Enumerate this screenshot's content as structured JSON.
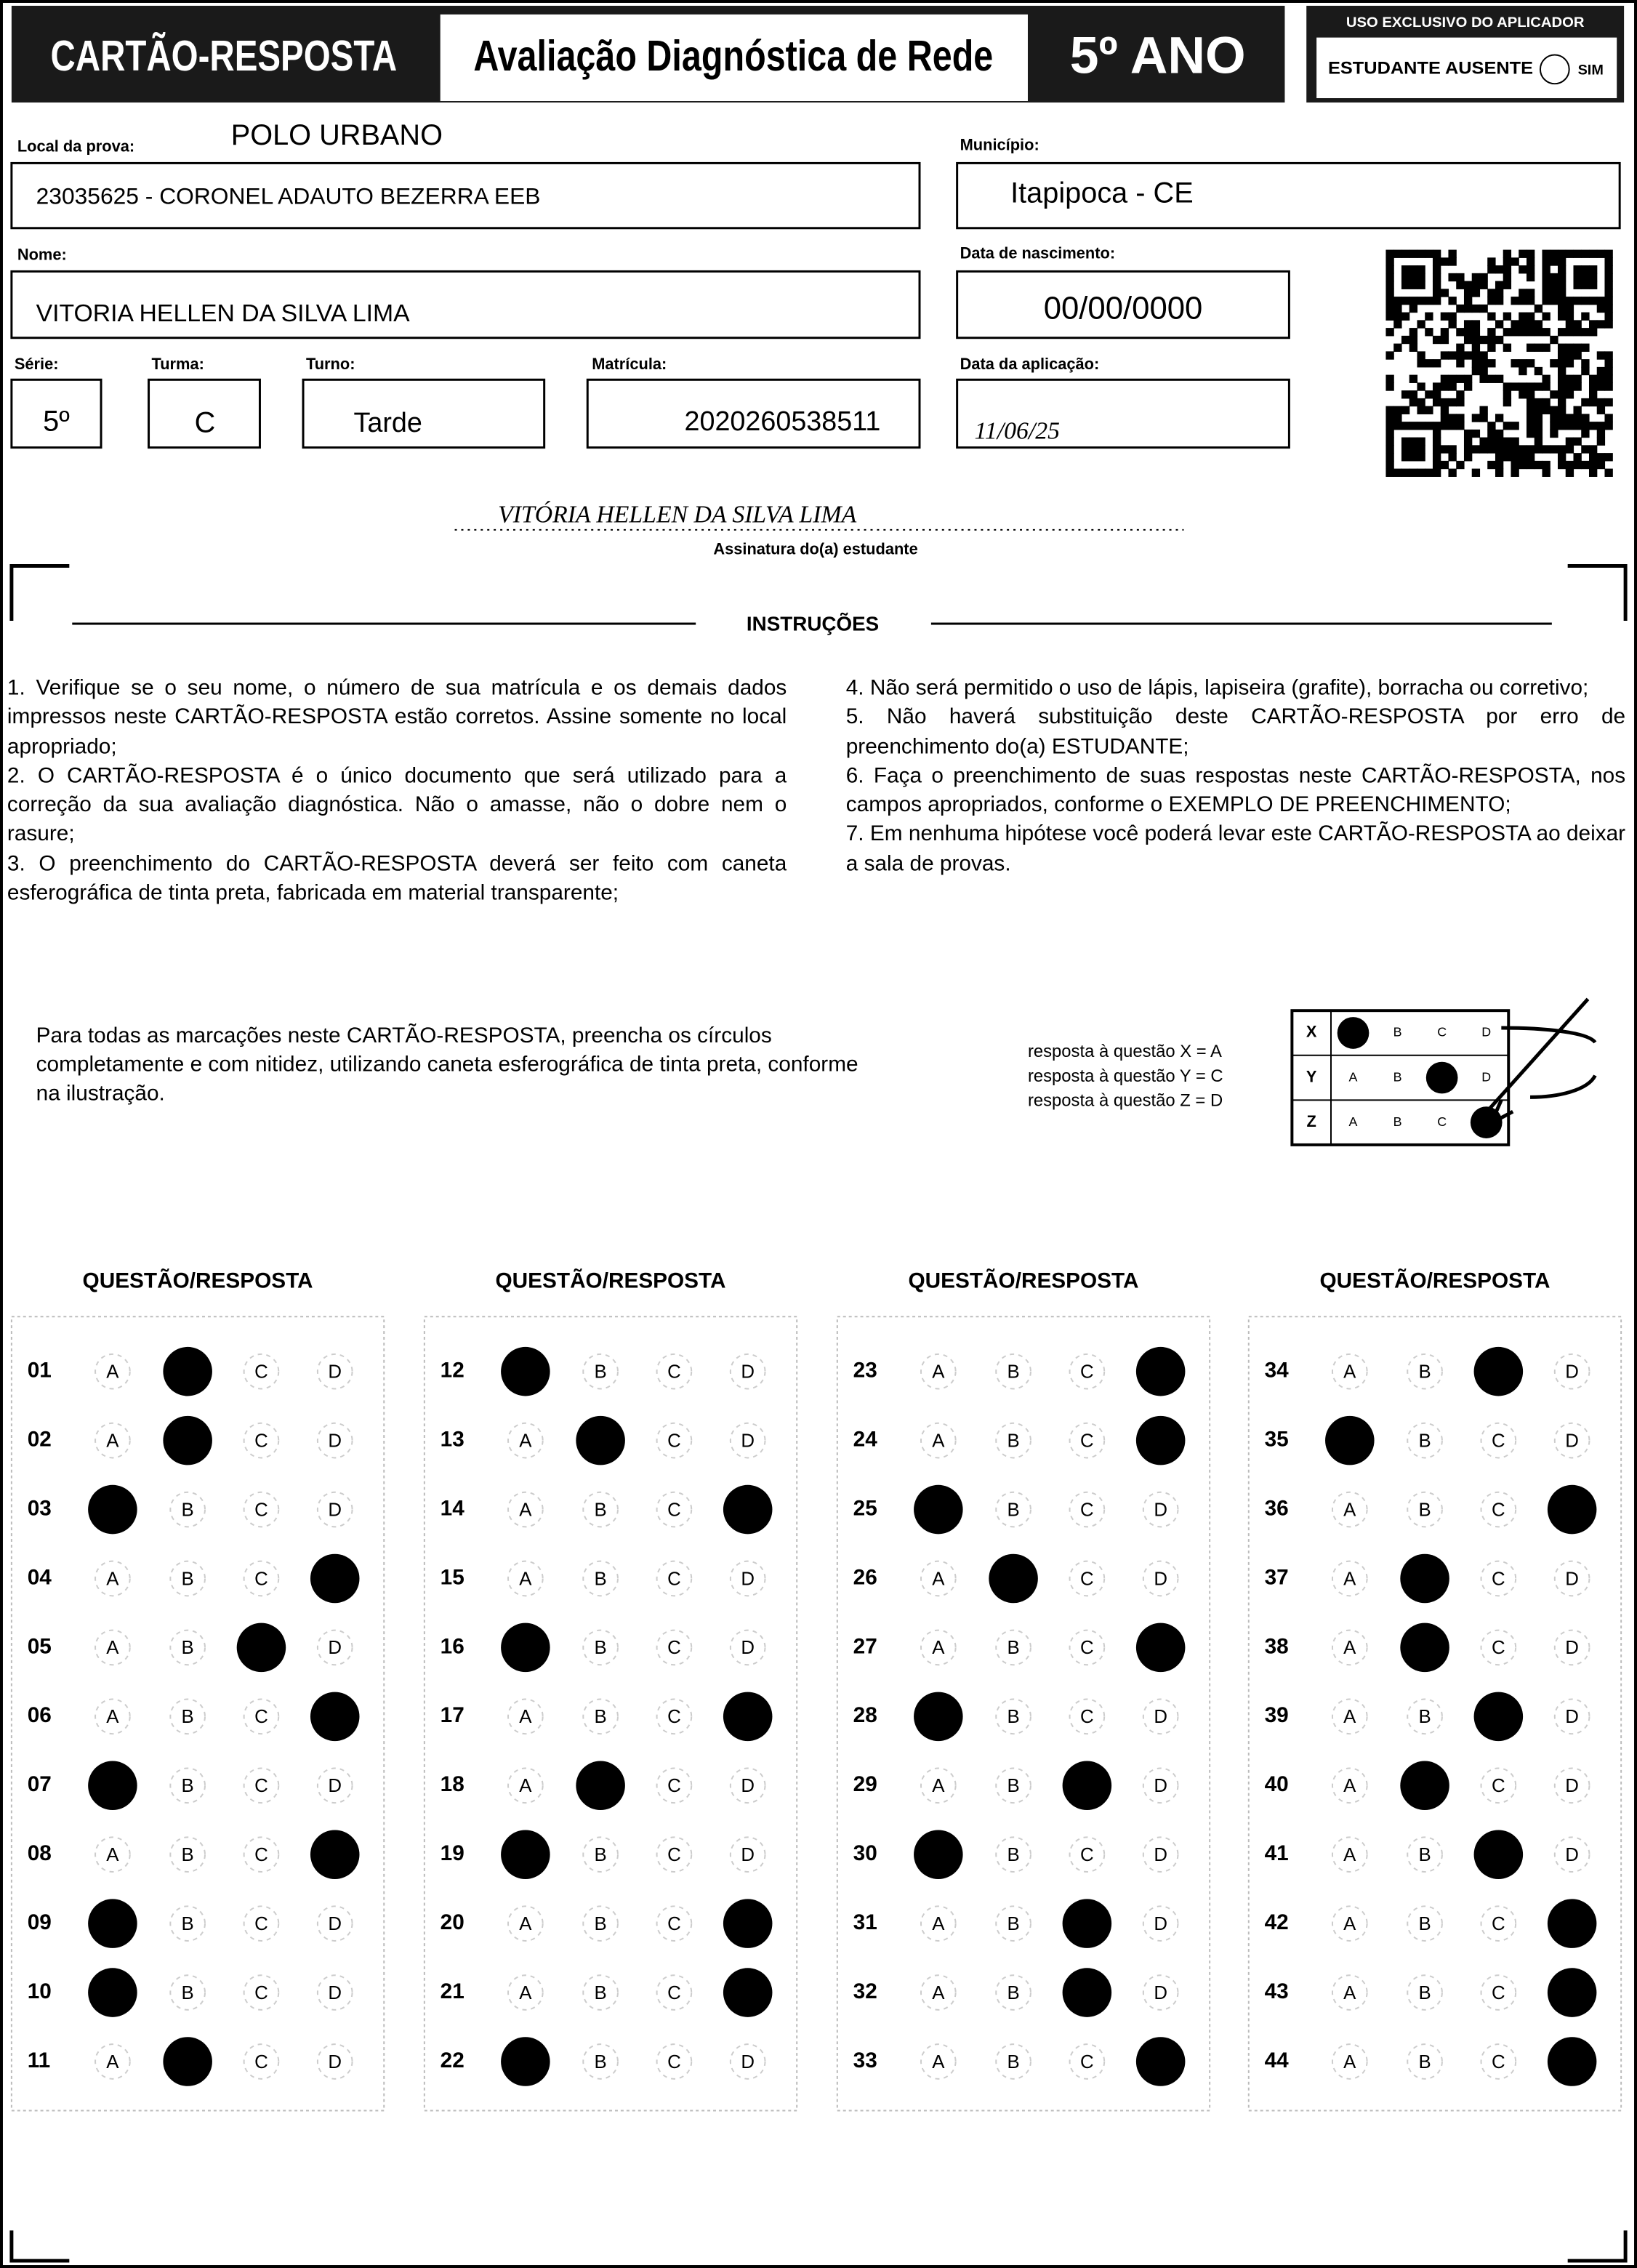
{
  "header": {
    "title": "CARTÃO-RESPOSTA",
    "exam": "Avaliação Diagnóstica de Rede",
    "grade": "5º ANO",
    "applicator": {
      "title": "USO EXCLUSIVO DO APLICADOR",
      "absent_label": "ESTUDANTE AUSENTE",
      "absent_option": "SIM"
    }
  },
  "fields": {
    "location": {
      "label": "Local da prova:",
      "polo": "POLO URBANO",
      "value": "23035625 - CORONEL ADAUTO BEZERRA EEB"
    },
    "municipality": {
      "label": "Município:",
      "value": "Itapipoca - CE"
    },
    "name": {
      "label": "Nome:",
      "value": "VITORIA HELLEN DA SILVA LIMA"
    },
    "birth_date": {
      "label": "Data de nascimento:",
      "value": "00/00/0000"
    },
    "series": {
      "label": "Série:",
      "value": "5º"
    },
    "class": {
      "label": "Turma:",
      "value": "C"
    },
    "shift": {
      "label": "Turno:",
      "value": "Tarde"
    },
    "registration": {
      "label": "Matrícula:",
      "value": "2020260538511"
    },
    "application_date": {
      "label": "Data da aplicação:",
      "value": "11/06/25"
    }
  },
  "signature": {
    "value": "VITÓRIA HELLEN DA SILVA LIMA",
    "label": "Assinatura do(a) estudante"
  },
  "instructions": {
    "title": "INSTRUÇÕES",
    "items": [
      "1. Verifique se o seu nome, o número de sua matrícula e os demais dados impressos neste CARTÃO-RESPOSTA estão corretos. Assine somente no local apropriado;",
      "2. O CARTÃO-RESPOSTA é o único documento que será utilizado para a correção da sua avaliação diagnóstica. Não o amasse, não o dobre nem o rasure;",
      "3. O preenchimento do CARTÃO-RESPOSTA deverá ser feito com caneta esferográfica de tinta preta, fabricada em material transparente;",
      "4. Não será permitido o uso de lápis, lapiseira (grafite), borracha ou corretivo;",
      "5. Não haverá substituição deste CARTÃO-RESPOSTA por erro de preenchimento do(a) ESTUDANTE;",
      "6. Faça o preenchimento de suas respostas neste CARTÃO-RESPOSTA, nos campos apropriados, conforme o EXEMPLO DE PREENCHIMENTO;",
      "7. Em nenhuma hipótese você poderá levar este CARTÃO-RESPOSTA ao deixar a sala de provas."
    ]
  },
  "example": {
    "text": "Para todas as marcações neste CARTÃO-RESPOSTA, preencha os círculos completamente e com nitidez, utilizando caneta esferográfica de tinta preta, conforme na ilustração.",
    "legend": [
      "resposta à questão X = A",
      "resposta à questão Y = C",
      "resposta à questão Z = D"
    ],
    "rows": [
      {
        "label": "X",
        "answer": "A"
      },
      {
        "label": "Y",
        "answer": "C"
      },
      {
        "label": "Z",
        "answer": "D"
      }
    ]
  },
  "answers": {
    "header": "QUESTÃO/RESPOSTA",
    "options": [
      "A",
      "B",
      "C",
      "D"
    ],
    "columns": [
      [
        {
          "number": "01",
          "answer": "B"
        },
        {
          "number": "02",
          "answer": "B"
        },
        {
          "number": "03",
          "answer": "A"
        },
        {
          "number": "04",
          "answer": "D"
        },
        {
          "number": "05",
          "answer": "C"
        },
        {
          "number": "06",
          "answer": "D"
        },
        {
          "number": "07",
          "answer": "A"
        },
        {
          "number": "08",
          "answer": "D"
        },
        {
          "number": "09",
          "answer": "A"
        },
        {
          "number": "10",
          "answer": "A"
        },
        {
          "number": "11",
          "answer": "B"
        }
      ],
      [
        {
          "number": "12",
          "answer": "A"
        },
        {
          "number": "13",
          "answer": "B"
        },
        {
          "number": "14",
          "answer": "D"
        },
        {
          "number": "15",
          "answer": null
        },
        {
          "number": "16",
          "answer": "A"
        },
        {
          "number": "17",
          "answer": "D"
        },
        {
          "number": "18",
          "answer": "B"
        },
        {
          "number": "19",
          "answer": "A"
        },
        {
          "number": "20",
          "answer": "D"
        },
        {
          "number": "21",
          "answer": "D"
        },
        {
          "number": "22",
          "answer": "A"
        }
      ],
      [
        {
          "number": "23",
          "answer": "D"
        },
        {
          "number": "24",
          "answer": "D"
        },
        {
          "number": "25",
          "answer": "A"
        },
        {
          "number": "26",
          "answer": "B"
        },
        {
          "number": "27",
          "answer": "D"
        },
        {
          "number": "28",
          "answer": "A"
        },
        {
          "number": "29",
          "answer": "C"
        },
        {
          "number": "30",
          "answer": "A"
        },
        {
          "number": "31",
          "answer": "C"
        },
        {
          "number": "32",
          "answer": "C"
        },
        {
          "number": "33",
          "answer": "D"
        }
      ],
      [
        {
          "number": "34",
          "answer": "C"
        },
        {
          "number": "35",
          "answer": "A"
        },
        {
          "number": "36",
          "answer": "D"
        },
        {
          "number": "37",
          "answer": "B"
        },
        {
          "number": "38",
          "answer": "B"
        },
        {
          "number": "39",
          "answer": "C"
        },
        {
          "number": "40",
          "answer": "B"
        },
        {
          "number": "41",
          "answer": "C"
        },
        {
          "number": "42",
          "answer": "D"
        },
        {
          "number": "43",
          "answer": "D"
        },
        {
          "number": "44",
          "answer": "D"
        }
      ]
    ]
  }
}
